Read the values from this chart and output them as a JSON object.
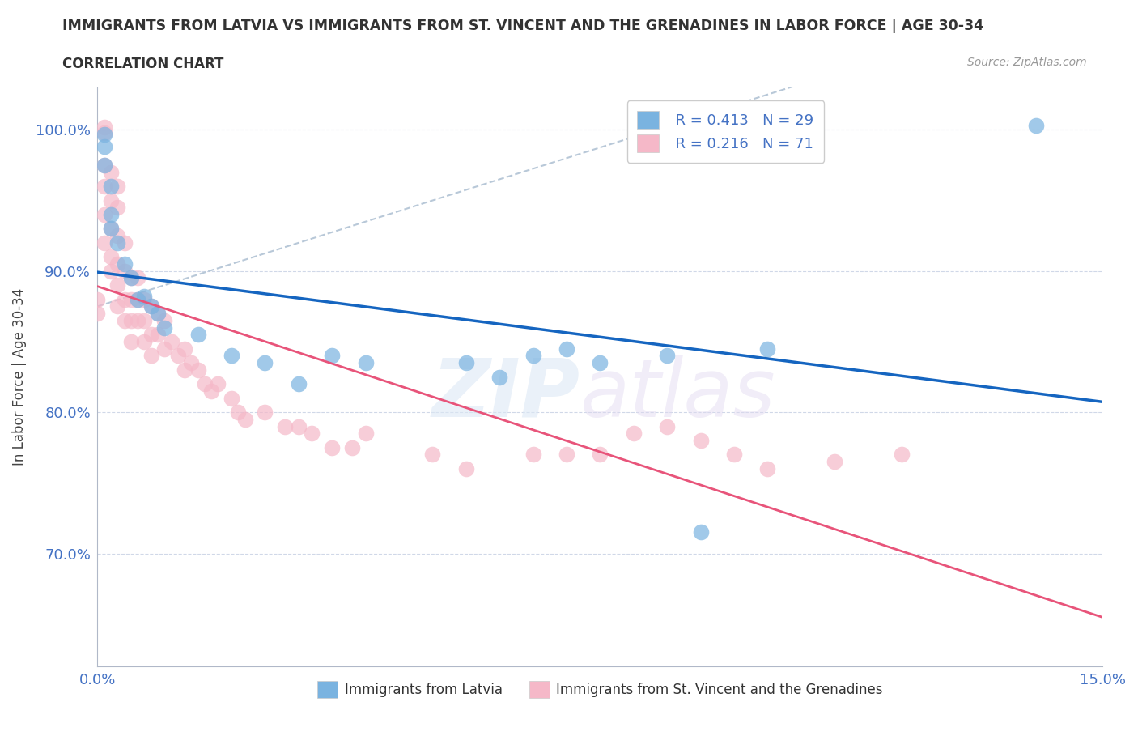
{
  "title": "IMMIGRANTS FROM LATVIA VS IMMIGRANTS FROM ST. VINCENT AND THE GRENADINES IN LABOR FORCE | AGE 30-34",
  "subtitle": "CORRELATION CHART",
  "source": "Source: ZipAtlas.com",
  "ylabel": "In Labor Force | Age 30-34",
  "xlim": [
    0.0,
    0.15
  ],
  "ylim": [
    0.62,
    1.03
  ],
  "xticks": [
    0.0,
    0.05,
    0.1,
    0.15
  ],
  "xticklabels": [
    "0.0%",
    "",
    "",
    "15.0%"
  ],
  "yticks": [
    0.7,
    0.8,
    0.9,
    1.0
  ],
  "yticklabels": [
    "70.0%",
    "80.0%",
    "90.0%",
    "100.0%"
  ],
  "legend_R1": "R = 0.413",
  "legend_N1": "N = 29",
  "legend_R2": "R = 0.216",
  "legend_N2": "N = 71",
  "blue_color": "#7ab3e0",
  "pink_color": "#f5b8c8",
  "trend_blue": "#1565c0",
  "trend_pink": "#e8547a",
  "trend_gray": "#b8c8d8",
  "latvia_x": [
    0.001,
    0.001,
    0.001,
    0.002,
    0.002,
    0.002,
    0.003,
    0.004,
    0.005,
    0.006,
    0.007,
    0.008,
    0.009,
    0.01,
    0.015,
    0.02,
    0.025,
    0.03,
    0.035,
    0.04,
    0.055,
    0.06,
    0.065,
    0.07,
    0.075,
    0.085,
    0.09,
    0.1,
    0.14
  ],
  "latvia_y": [
    0.997,
    0.988,
    0.975,
    0.96,
    0.94,
    0.93,
    0.92,
    0.905,
    0.895,
    0.88,
    0.882,
    0.875,
    0.87,
    0.86,
    0.855,
    0.84,
    0.835,
    0.82,
    0.84,
    0.835,
    0.835,
    0.825,
    0.84,
    0.845,
    0.835,
    0.84,
    0.715,
    0.845,
    1.003
  ],
  "svg_x": [
    0.0,
    0.0,
    0.001,
    0.001,
    0.001,
    0.001,
    0.001,
    0.001,
    0.002,
    0.002,
    0.002,
    0.002,
    0.002,
    0.003,
    0.003,
    0.003,
    0.003,
    0.003,
    0.003,
    0.004,
    0.004,
    0.004,
    0.004,
    0.005,
    0.005,
    0.005,
    0.005,
    0.006,
    0.006,
    0.006,
    0.007,
    0.007,
    0.007,
    0.008,
    0.008,
    0.008,
    0.009,
    0.009,
    0.01,
    0.01,
    0.011,
    0.012,
    0.013,
    0.013,
    0.014,
    0.015,
    0.016,
    0.017,
    0.018,
    0.02,
    0.021,
    0.022,
    0.025,
    0.028,
    0.03,
    0.032,
    0.035,
    0.038,
    0.04,
    0.05,
    0.055,
    0.065,
    0.07,
    0.075,
    0.08,
    0.085,
    0.09,
    0.095,
    0.1,
    0.11,
    0.12
  ],
  "svg_y": [
    0.88,
    0.87,
    1.002,
    0.998,
    0.975,
    0.96,
    0.94,
    0.92,
    0.97,
    0.95,
    0.93,
    0.91,
    0.9,
    0.96,
    0.945,
    0.925,
    0.905,
    0.89,
    0.875,
    0.92,
    0.9,
    0.88,
    0.865,
    0.895,
    0.88,
    0.865,
    0.85,
    0.895,
    0.88,
    0.865,
    0.88,
    0.865,
    0.85,
    0.875,
    0.855,
    0.84,
    0.87,
    0.855,
    0.865,
    0.845,
    0.85,
    0.84,
    0.845,
    0.83,
    0.835,
    0.83,
    0.82,
    0.815,
    0.82,
    0.81,
    0.8,
    0.795,
    0.8,
    0.79,
    0.79,
    0.785,
    0.775,
    0.775,
    0.785,
    0.77,
    0.76,
    0.77,
    0.77,
    0.77,
    0.785,
    0.79,
    0.78,
    0.77,
    0.76,
    0.765,
    0.77
  ]
}
